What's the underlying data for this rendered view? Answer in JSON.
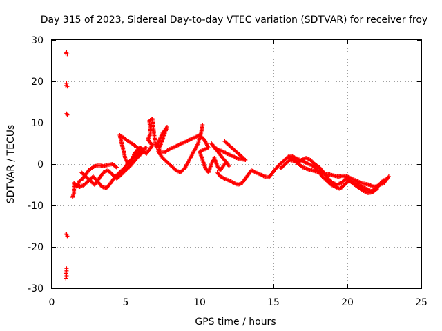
{
  "chart_data": {
    "type": "scatter",
    "title": "Day 315 of 2023, Sidereal Day-to-day VTEC variation (SDTVAR) for receiver froy",
    "xlabel": "GPS time / hours",
    "ylabel": "SDTVAR / TECUs",
    "xlim": [
      0,
      25
    ],
    "ylim": [
      -30,
      30
    ],
    "xticks": [
      0,
      5,
      10,
      15,
      20,
      25
    ],
    "yticks": [
      -30,
      -20,
      -10,
      0,
      10,
      20,
      30
    ],
    "grid": true,
    "marker": "+",
    "colors": {
      "series": "#ff0000",
      "grid": "#a0a0a0",
      "axes": "#000000"
    },
    "series": [
      {
        "name": "SDTVAR",
        "points": [
          [
            1.0,
            27.0
          ],
          [
            1.05,
            26.6
          ],
          [
            0.95,
            26.8
          ],
          [
            1.0,
            19.5
          ],
          [
            1.05,
            18.8
          ],
          [
            0.95,
            19.0
          ],
          [
            1.0,
            12.2
          ],
          [
            1.05,
            11.9
          ],
          [
            1.0,
            -17.0
          ],
          [
            1.05,
            -17.4
          ],
          [
            0.95,
            -16.9
          ],
          [
            1.0,
            -25.2
          ],
          [
            1.0,
            -25.8
          ],
          [
            0.95,
            -26.4
          ],
          [
            1.0,
            -27.0
          ],
          [
            0.95,
            -27.6
          ],
          [
            1.4,
            -8.0
          ],
          [
            1.5,
            -7.0
          ],
          [
            1.5,
            -4.5
          ],
          [
            1.7,
            -5.5
          ],
          [
            1.9,
            -4.0
          ],
          [
            2.1,
            -3.5
          ],
          [
            2.3,
            -2.5
          ],
          [
            2.5,
            -1.5
          ],
          [
            2.7,
            -1.0
          ],
          [
            2.9,
            -0.5
          ],
          [
            3.2,
            -0.3
          ],
          [
            3.5,
            -0.5
          ],
          [
            3.8,
            -0.2
          ],
          [
            4.1,
            0.0
          ],
          [
            4.4,
            -0.8
          ],
          [
            1.6,
            -5.0
          ],
          [
            1.9,
            -5.5
          ],
          [
            2.2,
            -5.0
          ],
          [
            2.5,
            -4.0
          ],
          [
            2.8,
            -3.0
          ],
          [
            3.1,
            -4.2
          ],
          [
            3.4,
            -5.5
          ],
          [
            3.7,
            -5.8
          ],
          [
            4.0,
            -4.5
          ],
          [
            4.3,
            -3.0
          ],
          [
            4.6,
            -2.0
          ],
          [
            4.9,
            -1.0
          ],
          [
            5.2,
            0.5
          ],
          [
            5.5,
            1.5
          ],
          [
            5.8,
            2.5
          ],
          [
            6.1,
            3.5
          ],
          [
            6.4,
            4.0
          ],
          [
            2.0,
            -2.0
          ],
          [
            2.3,
            -3.0
          ],
          [
            2.6,
            -4.0
          ],
          [
            2.9,
            -5.0
          ],
          [
            3.2,
            -3.5
          ],
          [
            3.5,
            -2.0
          ],
          [
            3.8,
            -1.5
          ],
          [
            4.1,
            -2.5
          ],
          [
            4.4,
            -3.5
          ],
          [
            4.7,
            -2.5
          ],
          [
            5.0,
            -1.5
          ],
          [
            5.3,
            -0.5
          ],
          [
            5.6,
            0.8
          ],
          [
            5.9,
            2.0
          ],
          [
            6.2,
            3.0
          ],
          [
            4.6,
            7.0
          ],
          [
            4.7,
            5.5
          ],
          [
            4.8,
            4.0
          ],
          [
            4.9,
            2.5
          ],
          [
            5.0,
            1.0
          ],
          [
            5.2,
            0.0
          ],
          [
            5.4,
            1.0
          ],
          [
            5.6,
            2.5
          ],
          [
            5.8,
            3.5
          ],
          [
            6.0,
            4.0
          ],
          [
            6.2,
            3.2
          ],
          [
            6.4,
            2.5
          ],
          [
            6.6,
            3.5
          ],
          [
            6.8,
            4.5
          ],
          [
            6.5,
            6.0
          ],
          [
            6.7,
            7.5
          ],
          [
            6.6,
            10.5
          ],
          [
            6.8,
            11.0
          ],
          [
            7.0,
            5.0
          ],
          [
            7.1,
            4.0
          ],
          [
            7.3,
            6.0
          ],
          [
            7.5,
            7.5
          ],
          [
            7.7,
            8.5
          ],
          [
            7.8,
            9.0
          ],
          [
            7.2,
            3.0
          ],
          [
            7.5,
            1.5
          ],
          [
            7.8,
            0.5
          ],
          [
            8.1,
            -0.5
          ],
          [
            8.4,
            -1.5
          ],
          [
            8.7,
            -2.0
          ],
          [
            9.0,
            -1.0
          ],
          [
            9.3,
            1.0
          ],
          [
            9.6,
            3.0
          ],
          [
            9.9,
            5.0
          ],
          [
            10.1,
            7.5
          ],
          [
            10.2,
            9.5
          ],
          [
            7.3,
            3.0
          ],
          [
            7.6,
            2.8
          ],
          [
            7.9,
            3.5
          ],
          [
            8.2,
            4.0
          ],
          [
            8.5,
            4.5
          ],
          [
            8.8,
            5.0
          ],
          [
            9.1,
            5.5
          ],
          [
            9.4,
            6.0
          ],
          [
            9.7,
            6.5
          ],
          [
            10.0,
            7.0
          ],
          [
            10.3,
            6.0
          ],
          [
            10.6,
            4.0
          ],
          [
            10.0,
            3.0
          ],
          [
            10.2,
            1.0
          ],
          [
            10.4,
            -1.0
          ],
          [
            10.6,
            -2.0
          ],
          [
            10.8,
            0.0
          ],
          [
            11.0,
            1.5
          ],
          [
            11.2,
            -0.5
          ],
          [
            11.4,
            -1.5
          ],
          [
            11.6,
            -0.5
          ],
          [
            11.8,
            0.5
          ],
          [
            12.0,
            -0.5
          ],
          [
            10.8,
            5.0
          ],
          [
            11.0,
            4.0
          ],
          [
            11.3,
            3.5
          ],
          [
            11.6,
            3.0
          ],
          [
            11.9,
            2.5
          ],
          [
            12.2,
            2.0
          ],
          [
            12.5,
            1.5
          ],
          [
            12.8,
            1.2
          ],
          [
            13.1,
            1.0
          ],
          [
            11.7,
            5.5
          ],
          [
            11.2,
            -2.0
          ],
          [
            11.4,
            -3.0
          ],
          [
            11.7,
            -3.5
          ],
          [
            12.0,
            -4.0
          ],
          [
            12.3,
            -4.5
          ],
          [
            12.6,
            -5.0
          ],
          [
            12.9,
            -4.5
          ],
          [
            13.1,
            -3.5
          ],
          [
            13.5,
            -1.5
          ],
          [
            13.8,
            -2.0
          ],
          [
            14.1,
            -2.5
          ],
          [
            14.4,
            -3.0
          ],
          [
            14.7,
            -3.2
          ],
          [
            15.0,
            -1.8
          ],
          [
            15.3,
            -0.5
          ],
          [
            15.6,
            0.5
          ],
          [
            15.9,
            1.5
          ],
          [
            16.2,
            2.0
          ],
          [
            16.5,
            1.5
          ],
          [
            16.8,
            1.0
          ],
          [
            17.1,
            0.5
          ],
          [
            17.4,
            0.0
          ],
          [
            17.7,
            -0.5
          ],
          [
            18.0,
            -1.5
          ],
          [
            18.3,
            -3.0
          ],
          [
            18.6,
            -4.0
          ],
          [
            18.9,
            -5.0
          ],
          [
            19.2,
            -5.5
          ],
          [
            19.5,
            -6.0
          ],
          [
            19.8,
            -5.0
          ],
          [
            20.1,
            -4.0
          ],
          [
            20.4,
            -4.5
          ],
          [
            20.7,
            -5.0
          ],
          [
            21.0,
            -5.5
          ],
          [
            21.3,
            -6.0
          ],
          [
            21.6,
            -6.5
          ],
          [
            21.9,
            -6.0
          ],
          [
            22.2,
            -5.0
          ],
          [
            22.5,
            -4.5
          ],
          [
            22.8,
            -3.0
          ],
          [
            15.5,
            -1.0
          ],
          [
            15.8,
            0.0
          ],
          [
            16.1,
            1.0
          ],
          [
            16.4,
            0.8
          ],
          [
            16.7,
            0.0
          ],
          [
            17.0,
            -0.8
          ],
          [
            17.3,
            -1.2
          ],
          [
            17.6,
            -1.5
          ],
          [
            17.9,
            -1.8
          ],
          [
            18.2,
            -2.0
          ],
          [
            18.5,
            -2.5
          ],
          [
            18.8,
            -2.5
          ],
          [
            19.1,
            -2.8
          ],
          [
            19.4,
            -3.0
          ],
          [
            19.7,
            -2.8
          ],
          [
            20.0,
            -3.0
          ],
          [
            20.3,
            -3.5
          ],
          [
            20.6,
            -4.0
          ],
          [
            20.9,
            -4.5
          ],
          [
            21.2,
            -4.8
          ],
          [
            21.5,
            -5.0
          ],
          [
            21.8,
            -5.5
          ],
          [
            22.1,
            -5.2
          ],
          [
            22.4,
            -4.0
          ],
          [
            22.7,
            -3.5
          ],
          [
            16.0,
            1.8
          ],
          [
            16.3,
            1.2
          ],
          [
            16.6,
            0.6
          ],
          [
            16.9,
            1.0
          ],
          [
            17.2,
            1.5
          ],
          [
            17.5,
            1.0
          ],
          [
            17.8,
            0.0
          ],
          [
            18.1,
            -0.8
          ],
          [
            18.4,
            -2.0
          ],
          [
            18.7,
            -3.5
          ],
          [
            19.0,
            -4.5
          ],
          [
            19.3,
            -5.0
          ],
          [
            19.6,
            -4.5
          ],
          [
            19.9,
            -3.5
          ],
          [
            20.2,
            -4.2
          ],
          [
            20.5,
            -5.0
          ],
          [
            20.8,
            -5.8
          ],
          [
            21.1,
            -6.5
          ],
          [
            21.4,
            -7.0
          ],
          [
            21.7,
            -6.8
          ],
          [
            22.0,
            -6.0
          ]
        ]
      }
    ]
  }
}
